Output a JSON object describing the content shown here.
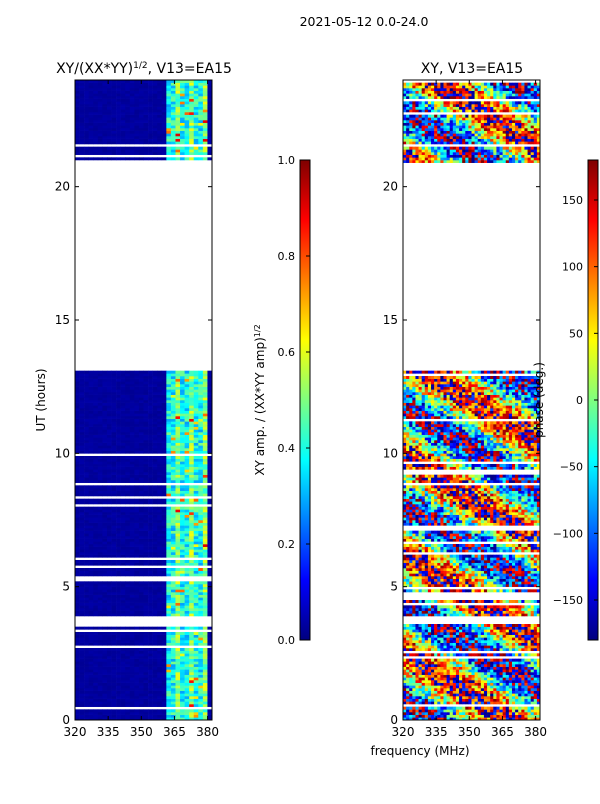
{
  "suptitle": "2021-05-12 0.0-24.0",
  "colors": {
    "jet": [
      "#00007f",
      "#0000ff",
      "#007fff",
      "#00ffff",
      "#7fff7f",
      "#ffff00",
      "#ff7f00",
      "#ff0000",
      "#7f0000"
    ],
    "frame": "#000000",
    "gap": "#ffffff"
  },
  "chart_data": [
    {
      "type": "heatmap",
      "title": "XY/(XX*YY)^{1/2}, V13=EA15",
      "title_main": "XY/(XX*YY)",
      "title_exp": "1/2",
      "title_rest": ", V13=EA15",
      "ylabel": "UT (hours)",
      "xlabel": "",
      "xlim": [
        320,
        382
      ],
      "ylim": [
        0,
        24
      ],
      "xticks": [
        320,
        335,
        350,
        365,
        380
      ],
      "yticks": [
        0,
        5,
        10,
        15,
        20
      ],
      "observed_hours": [
        [
          0,
          3.6
        ],
        [
          3.9,
          13.2
        ],
        [
          20.9,
          24
        ]
      ],
      "active_band_mhz": [
        360,
        380
      ],
      "colorbar": {
        "label": "XY amp. / (XX*YY amp)^{1/2}",
        "label_main": "XY amp. / (XX*YY amp)",
        "label_exp": "1/2",
        "range": [
          0.0,
          1.0
        ],
        "ticks": [
          "0.0",
          "0.2",
          "0.4",
          "0.6",
          "0.8",
          "1.0"
        ]
      }
    },
    {
      "type": "heatmap",
      "title": "XY, V13=EA15",
      "ylabel": "",
      "xlabel": "frequency (MHz)",
      "xlim": [
        320,
        382
      ],
      "ylim": [
        0,
        24
      ],
      "xticks": [
        320,
        335,
        350,
        365,
        380
      ],
      "yticks": [
        0,
        5,
        10,
        15,
        20
      ],
      "observed_hours": [
        [
          0,
          3.6
        ],
        [
          3.9,
          13.2
        ],
        [
          20.9,
          24
        ]
      ],
      "colorbar": {
        "label": "phase (deg.)",
        "range": [
          -180,
          180
        ],
        "ticks": [
          "-150",
          "-100",
          "-50",
          "0",
          "50",
          "100",
          "150"
        ]
      }
    }
  ]
}
